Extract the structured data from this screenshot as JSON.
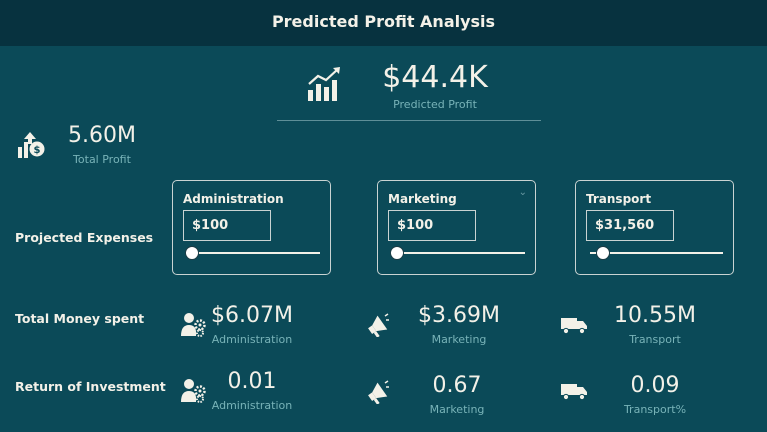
{
  "header": {
    "title": "Predicted Profit Analysis"
  },
  "predicted": {
    "value": "$44.4K",
    "label": "Predicted Profit"
  },
  "total_profit": {
    "value": "5.60M",
    "label": "Total Profit"
  },
  "projected_expenses": {
    "label": "Projected Expenses",
    "cards": [
      {
        "title": "Administration",
        "value": "$100",
        "slider_fraction": 0.0
      },
      {
        "title": "Marketing",
        "value": "$100",
        "slider_fraction": 0.0
      },
      {
        "title": "Transport",
        "value": "$31,560",
        "slider_fraction": 0.0
      }
    ]
  },
  "money_spent": {
    "label": "Total Money spent",
    "items": [
      {
        "value": "$6.07M",
        "label": "Administration"
      },
      {
        "value": "$3.69M",
        "label": "Marketing"
      },
      {
        "value": "10.55M",
        "label": "Transport"
      }
    ]
  },
  "roi": {
    "label": "Return of Investment",
    "items": [
      {
        "value": "0.01",
        "label": "Administration"
      },
      {
        "value": "0.67",
        "label": "Marketing"
      },
      {
        "value": "0.09",
        "label": "Transport%"
      }
    ]
  },
  "icons": {
    "predicted": "growth-chart-icon",
    "total_profit": "profit-dollar-icon",
    "administration": "admin-gears-icon",
    "marketing": "megaphone-icon",
    "transport": "truck-icon"
  },
  "colors": {
    "background": "#0b4a58",
    "header": "#07323f",
    "text": "#f3f1e8",
    "sub": "#78b3b8"
  }
}
